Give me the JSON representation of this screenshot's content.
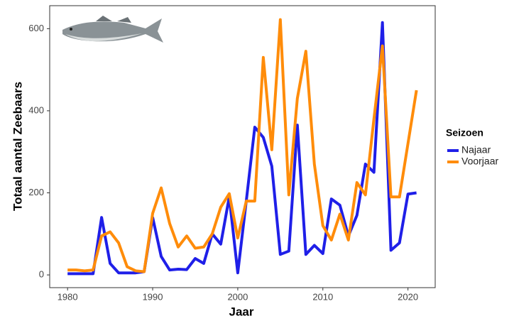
{
  "chart_data": {
    "type": "line",
    "x_label": "Jaar",
    "y_label": "Totaal aantal Zeebaars",
    "legend_title": "Seizoen",
    "legend": "right",
    "x": [
      1980,
      1981,
      1982,
      1983,
      1984,
      1985,
      1986,
      1987,
      1988,
      1989,
      1990,
      1991,
      1992,
      1993,
      1994,
      1995,
      1996,
      1997,
      1998,
      1999,
      2000,
      2001,
      2002,
      2003,
      2004,
      2005,
      2006,
      2007,
      2008,
      2009,
      2010,
      2011,
      2012,
      2013,
      2014,
      2015,
      2016,
      2017,
      2018,
      2019,
      2020,
      2021
    ],
    "series": [
      {
        "name": "Najaar",
        "color": "#1f1fe8",
        "values": [
          3,
          3,
          3,
          3,
          140,
          28,
          5,
          5,
          5,
          8,
          140,
          45,
          12,
          14,
          13,
          40,
          28,
          100,
          75,
          190,
          5,
          180,
          360,
          335,
          265,
          50,
          58,
          365,
          50,
          72,
          52,
          185,
          170,
          95,
          145,
          270,
          250,
          615,
          60,
          78,
          197,
          200
        ]
      },
      {
        "name": "Voorjaar",
        "color": "#ff8c0a",
        "values": [
          12,
          12,
          10,
          12,
          95,
          105,
          78,
          20,
          10,
          8,
          150,
          212,
          125,
          68,
          95,
          65,
          68,
          100,
          165,
          198,
          90,
          180,
          180,
          530,
          305,
          622,
          195,
          430,
          545,
          270,
          120,
          85,
          148,
          85,
          225,
          195,
          380,
          558,
          190,
          190,
          320,
          450
        ]
      }
    ],
    "xlim": [
      1977.9,
      2023.2
    ],
    "xticks": [
      1980,
      1990,
      2000,
      2010,
      2020
    ],
    "ylim": [
      -31,
      656
    ],
    "yticks": [
      0,
      200,
      400,
      600
    ]
  }
}
